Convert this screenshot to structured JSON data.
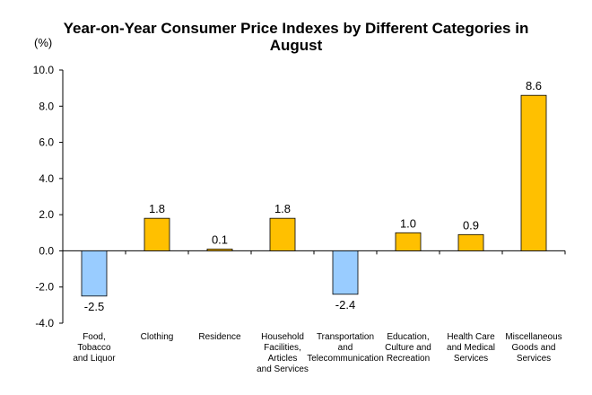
{
  "chart_data": {
    "type": "bar",
    "title": "Year-on-Year Consumer Price Indexes by Different Categories in August",
    "unit": "(%)",
    "categories": [
      "Food, Tobacco and Liquor",
      "Clothing",
      "Residence",
      "Household Facilities, Articles and Services",
      "Transportation and Telecommunication",
      "Education, Culture and Recreation",
      "Health Care and Medical Services",
      "Miscellaneous Goods and Services"
    ],
    "category_label_lines": [
      [
        "Food,",
        "Tobacco",
        "and Liquor"
      ],
      [
        "Clothing"
      ],
      [
        "Residence"
      ],
      [
        "Household",
        "Facilities,",
        "Articles",
        "and Services"
      ],
      [
        "Transportation",
        "and",
        "Telecommunication"
      ],
      [
        "Education,",
        "Culture and",
        "Recreation"
      ],
      [
        "Health Care",
        "and Medical",
        "Services"
      ],
      [
        "Miscellaneous",
        "Goods and",
        "Services"
      ]
    ],
    "values": [
      -2.5,
      1.8,
      0.1,
      1.8,
      -2.4,
      1.0,
      0.9,
      8.6
    ],
    "value_labels": [
      "-2.5",
      "1.8",
      "0.1",
      "1.8",
      "-2.4",
      "1.0",
      "0.9",
      "8.6"
    ],
    "ylim": [
      -4.0,
      10.0
    ],
    "yticks": [
      -4.0,
      -2.0,
      0.0,
      2.0,
      4.0,
      6.0,
      8.0,
      10.0
    ],
    "ytick_labels": [
      "-4.0",
      "-2.0",
      "0.0",
      "2.0",
      "4.0",
      "6.0",
      "8.0",
      "10.0"
    ],
    "grid": false,
    "legend": "none",
    "colors": {
      "positive": "#FFC000",
      "negative": "#99CCFF",
      "bar_border": "#000000",
      "axis": "#000000"
    }
  }
}
